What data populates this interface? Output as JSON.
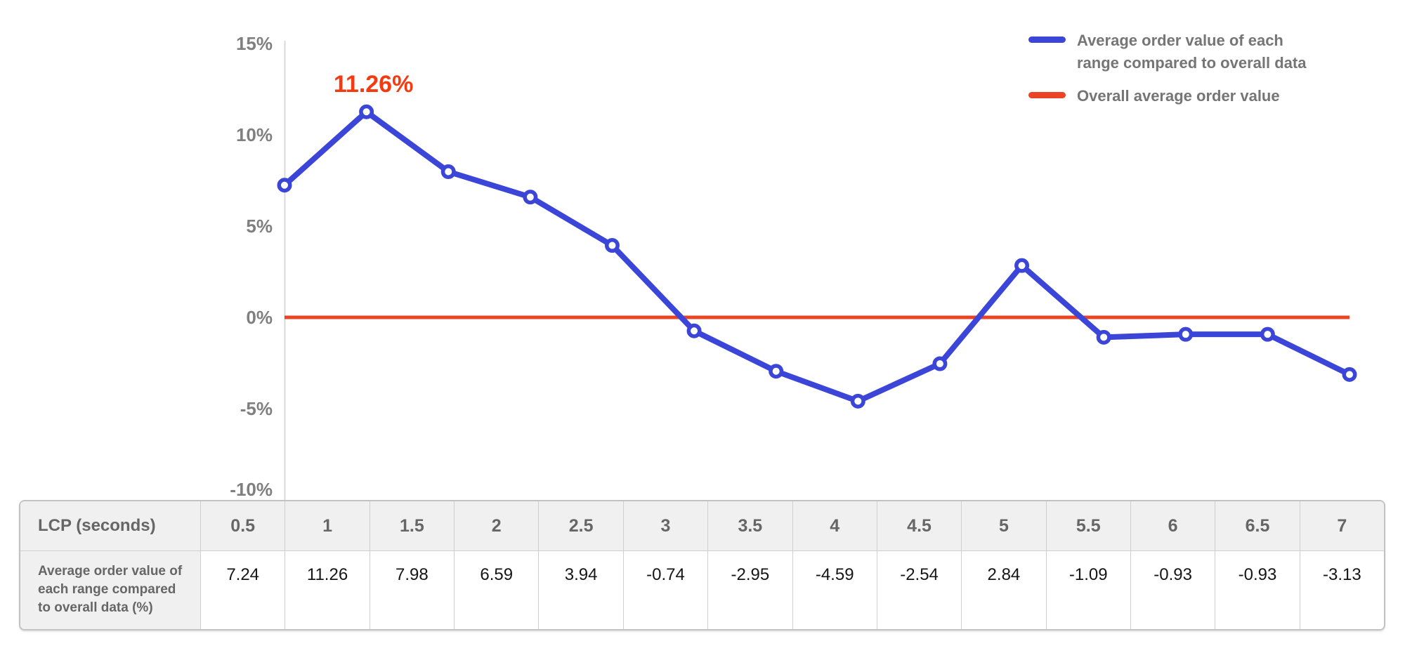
{
  "chart_data": {
    "type": "line",
    "x_label": "LCP (seconds)",
    "x": [
      0.5,
      1,
      1.5,
      2,
      2.5,
      3,
      3.5,
      4,
      4.5,
      5,
      5.5,
      6,
      6.5,
      7
    ],
    "series": [
      {
        "name": "Average order value of each range compared to overall data",
        "color": "#3b46d8",
        "marker": "circle",
        "values": [
          7.24,
          11.26,
          7.98,
          6.59,
          3.94,
          -0.74,
          -2.95,
          -4.59,
          -2.54,
          2.84,
          -1.09,
          -0.93,
          -0.93,
          -3.13
        ]
      },
      {
        "name": "Overall average order value",
        "color": "#eb4424",
        "marker": "none",
        "values": [
          0,
          0,
          0,
          0,
          0,
          0,
          0,
          0,
          0,
          0,
          0,
          0,
          0,
          0
        ]
      }
    ],
    "ylim": [
      -10,
      15
    ],
    "grid": false,
    "legend_position": "top-right",
    "annotation": {
      "text": "11.26%",
      "x": 1,
      "value": 11.26,
      "color": "#f43a10"
    }
  },
  "chart": {
    "y_axis": {
      "ticks": [
        {
          "label": "15%",
          "value": 15
        },
        {
          "label": "10%",
          "value": 10
        },
        {
          "label": "5%",
          "value": 5
        },
        {
          "label": "0%",
          "value": 0
        },
        {
          "label": "-5%",
          "value": -5
        },
        {
          "label": "-10%",
          "value": -10
        }
      ],
      "label_color": "#7f7f7f"
    },
    "legend": {
      "items": [
        {
          "label": "Average order value of each range compared to overall data",
          "color": "#3b46d8"
        },
        {
          "label": "Overall average order value",
          "color": "#eb4424"
        }
      ]
    }
  },
  "table": {
    "header_label": "LCP (seconds)",
    "row_label": "Average order value of each range compared to overall data (%)",
    "columns": [
      "0.5",
      "1",
      "1.5",
      "2",
      "2.5",
      "3",
      "3.5",
      "4",
      "4.5",
      "5",
      "5.5",
      "6",
      "6.5",
      "7"
    ],
    "values": [
      "7.24",
      "11.26",
      "7.98",
      "6.59",
      "3.94",
      "-0.74",
      "-2.95",
      "-4.59",
      "-2.54",
      "2.84",
      "-1.09",
      "-0.93",
      "-0.93",
      "-3.13"
    ]
  }
}
